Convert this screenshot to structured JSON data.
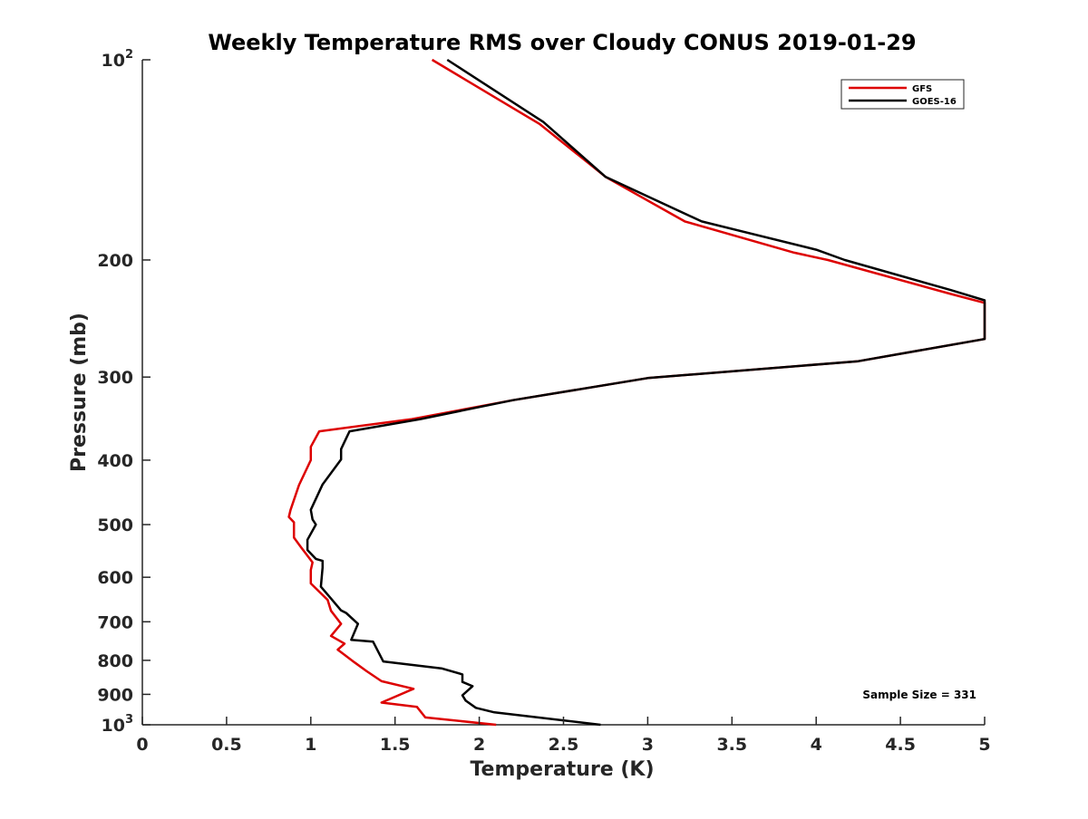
{
  "chart_data": {
    "type": "line",
    "title": "Weekly Temperature RMS over Cloudy CONUS 2019-01-29",
    "xlabel": "Temperature (K)",
    "ylabel": "Pressure (mb)",
    "xlim": [
      0,
      5
    ],
    "ylim": [
      100,
      1000
    ],
    "yscale": "log",
    "y_reversed": true,
    "grid": false,
    "legend_position": "top-right",
    "x_ticks": [
      0,
      0.5,
      1,
      1.5,
      2,
      2.5,
      3,
      3.5,
      4,
      4.5,
      5
    ],
    "x_tick_labels": [
      "0",
      "0.5",
      "1",
      "1.5",
      "2",
      "2.5",
      "3",
      "3.5",
      "4",
      "4.5",
      "5"
    ],
    "y_ticks": [
      100,
      200,
      300,
      400,
      500,
      600,
      700,
      800,
      900,
      1000
    ],
    "y_tick_labels": [
      {
        "base": "10",
        "exp": "2"
      },
      {
        "base": "200",
        "exp": ""
      },
      {
        "base": "300",
        "exp": ""
      },
      {
        "base": "400",
        "exp": ""
      },
      {
        "base": "500",
        "exp": ""
      },
      {
        "base": "600",
        "exp": ""
      },
      {
        "base": "700",
        "exp": ""
      },
      {
        "base": "800",
        "exp": ""
      },
      {
        "base": "900",
        "exp": ""
      },
      {
        "base": "10",
        "exp": "3"
      }
    ],
    "annotation": "Sample Size = 331",
    "series": [
      {
        "name": "GFS",
        "color": "#dd0000",
        "points": [
          [
            1.72,
            100
          ],
          [
            2.36,
            125
          ],
          [
            2.75,
            150
          ],
          [
            3.22,
            175
          ],
          [
            3.87,
            195
          ],
          [
            4.07,
            200
          ],
          [
            4.8,
            225
          ],
          [
            5.0,
            232
          ],
          [
            5.0,
            263
          ],
          [
            4.25,
            284
          ],
          [
            3.0,
            301
          ],
          [
            2.2,
            325
          ],
          [
            1.6,
            347
          ],
          [
            1.05,
            362
          ],
          [
            1.0,
            382
          ],
          [
            1.0,
            400
          ],
          [
            0.93,
            436
          ],
          [
            0.88,
            475
          ],
          [
            0.87,
            487
          ],
          [
            0.9,
            496
          ],
          [
            0.9,
            523
          ],
          [
            0.94,
            540
          ],
          [
            1.01,
            570
          ],
          [
            1.0,
            585
          ],
          [
            1.0,
            613
          ],
          [
            1.1,
            649
          ],
          [
            1.12,
            674
          ],
          [
            1.18,
            705
          ],
          [
            1.12,
            735
          ],
          [
            1.2,
            755
          ],
          [
            1.16,
            771
          ],
          [
            1.26,
            806
          ],
          [
            1.33,
            830
          ],
          [
            1.42,
            860
          ],
          [
            1.61,
            883
          ],
          [
            1.42,
            926
          ],
          [
            1.63,
            940
          ],
          [
            1.68,
            975
          ],
          [
            2.1,
            1000
          ]
        ]
      },
      {
        "name": "GOES-16",
        "color": "#000000",
        "points": [
          [
            1.81,
            100
          ],
          [
            2.38,
            124
          ],
          [
            2.75,
            150
          ],
          [
            3.32,
            175
          ],
          [
            4.0,
            193
          ],
          [
            4.17,
            200
          ],
          [
            4.8,
            222
          ],
          [
            5.0,
            230
          ],
          [
            5.0,
            263
          ],
          [
            4.25,
            284
          ],
          [
            3.0,
            301
          ],
          [
            2.2,
            325
          ],
          [
            1.65,
            347
          ],
          [
            1.23,
            362
          ],
          [
            1.18,
            385
          ],
          [
            1.18,
            399
          ],
          [
            1.07,
            435
          ],
          [
            1.0,
            475
          ],
          [
            1.01,
            491
          ],
          [
            1.03,
            500
          ],
          [
            0.98,
            527
          ],
          [
            0.98,
            546
          ],
          [
            1.03,
            563
          ],
          [
            1.07,
            567
          ],
          [
            1.07,
            580
          ],
          [
            1.06,
            620
          ],
          [
            1.12,
            646
          ],
          [
            1.18,
            673
          ],
          [
            1.21,
            679
          ],
          [
            1.28,
            705
          ],
          [
            1.24,
            745
          ],
          [
            1.37,
            750
          ],
          [
            1.43,
            803
          ],
          [
            1.78,
            823
          ],
          [
            1.9,
            840
          ],
          [
            1.9,
            862
          ],
          [
            1.96,
            875
          ],
          [
            1.9,
            903
          ],
          [
            1.92,
            920
          ],
          [
            1.98,
            943
          ],
          [
            2.09,
            958
          ],
          [
            2.72,
            1000
          ]
        ]
      }
    ]
  }
}
